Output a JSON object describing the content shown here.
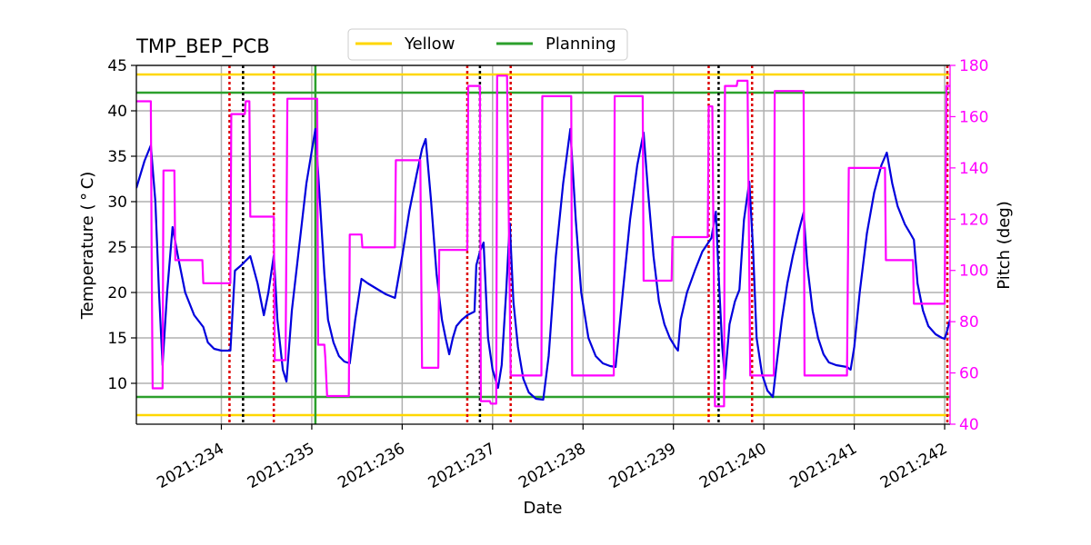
{
  "chart_data": {
    "type": "line",
    "title": "TMP_BEP_PCB",
    "xlabel": "Date",
    "ylabel": "Temperature ($^\\circ$C)",
    "ylabel_right": "Pitch (deg)",
    "xlim": [
      233.06,
      242.06
    ],
    "ylim": [
      5.5,
      45
    ],
    "ylim_right": [
      40,
      180
    ],
    "grid": true,
    "legend_position": "top-center",
    "x_ticks": [
      234,
      235,
      236,
      237,
      238,
      239,
      240,
      241,
      242
    ],
    "x_tick_labels": [
      "2021:234",
      "2021:235",
      "2021:236",
      "2021:237",
      "2021:238",
      "2021:239",
      "2021:240",
      "2021:241",
      "2021:242"
    ],
    "y_ticks": [
      10,
      15,
      20,
      25,
      30,
      35,
      40,
      45
    ],
    "y_tick_labels": [
      "10",
      "15",
      "20",
      "25",
      "30",
      "35",
      "40",
      "45"
    ],
    "y_ticks_right": [
      40,
      60,
      80,
      100,
      120,
      140,
      160,
      180
    ],
    "y_tick_labels_right": [
      "40",
      "60",
      "80",
      "100",
      "120",
      "140",
      "160",
      "180"
    ],
    "limits": [
      {
        "name": "Yellow",
        "values": [
          6.5,
          44
        ],
        "color": "#ffd700"
      },
      {
        "name": "Planning",
        "values": [
          8.5,
          42
        ],
        "color": "#2ca02c"
      }
    ],
    "vlines": {
      "red_dotted": [
        234.09,
        234.58,
        236.72,
        237.2,
        239.39,
        239.87,
        242.03
      ],
      "black_dotted": [
        234.24,
        236.86,
        239.5
      ],
      "green_solid": [
        235.04
      ]
    },
    "series": [
      {
        "axis": "left",
        "color": "#0000dd",
        "points": [
          [
            233.06,
            31.5
          ],
          [
            233.15,
            34.5
          ],
          [
            233.22,
            36.2
          ],
          [
            233.27,
            30
          ],
          [
            233.31,
            20
          ],
          [
            233.35,
            12
          ],
          [
            233.4,
            20
          ],
          [
            233.46,
            27.2
          ],
          [
            233.52,
            24
          ],
          [
            233.6,
            20
          ],
          [
            233.7,
            17.5
          ],
          [
            233.8,
            16.2
          ],
          [
            233.85,
            14.5
          ],
          [
            233.92,
            13.8
          ],
          [
            234.0,
            13.6
          ],
          [
            234.1,
            13.6
          ],
          [
            234.15,
            22.4
          ],
          [
            234.22,
            23
          ],
          [
            234.32,
            24
          ],
          [
            234.4,
            21
          ],
          [
            234.47,
            17.5
          ],
          [
            234.52,
            20
          ],
          [
            234.58,
            24.1
          ],
          [
            234.62,
            17
          ],
          [
            234.68,
            11.5
          ],
          [
            234.72,
            10.2
          ],
          [
            234.78,
            18
          ],
          [
            234.86,
            25
          ],
          [
            234.94,
            32
          ],
          [
            235.04,
            38
          ],
          [
            235.09,
            30
          ],
          [
            235.14,
            22
          ],
          [
            235.18,
            17
          ],
          [
            235.24,
            14.5
          ],
          [
            235.3,
            13
          ],
          [
            235.36,
            12.4
          ],
          [
            235.42,
            12.2
          ],
          [
            235.48,
            17
          ],
          [
            235.55,
            21.5
          ],
          [
            235.62,
            21
          ],
          [
            235.72,
            20.4
          ],
          [
            235.82,
            19.8
          ],
          [
            235.92,
            19.4
          ],
          [
            236.0,
            24
          ],
          [
            236.08,
            29
          ],
          [
            236.16,
            33
          ],
          [
            236.22,
            35.8
          ],
          [
            236.26,
            36.9
          ],
          [
            236.32,
            30
          ],
          [
            236.38,
            22
          ],
          [
            236.44,
            17
          ],
          [
            236.48,
            15
          ],
          [
            236.52,
            13.2
          ],
          [
            236.56,
            15
          ],
          [
            236.6,
            16.3
          ],
          [
            236.66,
            17
          ],
          [
            236.72,
            17.5
          ],
          [
            236.76,
            17.7
          ],
          [
            236.8,
            17.9
          ],
          [
            236.82,
            23
          ],
          [
            236.86,
            24.5
          ],
          [
            236.9,
            25.5
          ],
          [
            236.95,
            15
          ],
          [
            237.0,
            11.5
          ],
          [
            237.06,
            9.5
          ],
          [
            237.1,
            12
          ],
          [
            237.15,
            20
          ],
          [
            237.19,
            27.6
          ],
          [
            237.23,
            19
          ],
          [
            237.28,
            14
          ],
          [
            237.34,
            10.5
          ],
          [
            237.4,
            9
          ],
          [
            237.48,
            8.3
          ],
          [
            237.56,
            8.2
          ],
          [
            237.62,
            13
          ],
          [
            237.7,
            24
          ],
          [
            237.78,
            32
          ],
          [
            237.86,
            38
          ],
          [
            237.92,
            28
          ],
          [
            237.98,
            20
          ],
          [
            238.06,
            15
          ],
          [
            238.14,
            13
          ],
          [
            238.22,
            12.2
          ],
          [
            238.3,
            11.9
          ],
          [
            238.36,
            11.8
          ],
          [
            238.44,
            20
          ],
          [
            238.52,
            28
          ],
          [
            238.6,
            34
          ],
          [
            238.67,
            37.6
          ],
          [
            238.72,
            31
          ],
          [
            238.78,
            24
          ],
          [
            238.84,
            19
          ],
          [
            238.9,
            16.5
          ],
          [
            238.96,
            15
          ],
          [
            239.02,
            14
          ],
          [
            239.05,
            13.6
          ],
          [
            239.08,
            17
          ],
          [
            239.15,
            20
          ],
          [
            239.24,
            22.5
          ],
          [
            239.32,
            24.5
          ],
          [
            239.42,
            26
          ],
          [
            239.47,
            28.9
          ],
          [
            239.5,
            22
          ],
          [
            239.54,
            14
          ],
          [
            239.57,
            10.5
          ],
          [
            239.62,
            16.5
          ],
          [
            239.68,
            19
          ],
          [
            239.73,
            20.3
          ],
          [
            239.78,
            28
          ],
          [
            239.84,
            32.2
          ],
          [
            239.88,
            25
          ],
          [
            239.92,
            15
          ],
          [
            239.98,
            11
          ],
          [
            240.04,
            9.2
          ],
          [
            240.1,
            8.5
          ],
          [
            240.14,
            12
          ],
          [
            240.2,
            17
          ],
          [
            240.26,
            21
          ],
          [
            240.32,
            24
          ],
          [
            240.38,
            26.5
          ],
          [
            240.44,
            28.8
          ],
          [
            240.48,
            23
          ],
          [
            240.54,
            18
          ],
          [
            240.6,
            15
          ],
          [
            240.66,
            13.2
          ],
          [
            240.72,
            12.3
          ],
          [
            240.8,
            12
          ],
          [
            240.92,
            11.8
          ],
          [
            240.96,
            11.5
          ],
          [
            241.0,
            14
          ],
          [
            241.06,
            20
          ],
          [
            241.14,
            26.5
          ],
          [
            241.22,
            31
          ],
          [
            241.3,
            34
          ],
          [
            241.36,
            35.4
          ],
          [
            241.42,
            32
          ],
          [
            241.48,
            29.5
          ],
          [
            241.56,
            27.5
          ],
          [
            241.62,
            26.5
          ],
          [
            241.66,
            25.8
          ],
          [
            241.7,
            21
          ],
          [
            241.76,
            18
          ],
          [
            241.82,
            16.3
          ],
          [
            241.9,
            15.4
          ],
          [
            241.97,
            15
          ],
          [
            242.0,
            14.9
          ],
          [
            242.02,
            15.5
          ],
          [
            242.06,
            17
          ]
        ]
      },
      {
        "axis": "right",
        "color": "#ff00ff",
        "points": [
          [
            233.06,
            166
          ],
          [
            233.2,
            166
          ],
          [
            233.22,
            166
          ],
          [
            233.23,
            100
          ],
          [
            233.24,
            54
          ],
          [
            233.35,
            54
          ],
          [
            233.36,
            139
          ],
          [
            233.48,
            139
          ],
          [
            233.49,
            104
          ],
          [
            233.79,
            104
          ],
          [
            233.8,
            95
          ],
          [
            234.1,
            95
          ],
          [
            234.11,
            161
          ],
          [
            234.26,
            161
          ],
          [
            234.27,
            166
          ],
          [
            234.31,
            166
          ],
          [
            234.32,
            121
          ],
          [
            234.58,
            121
          ],
          [
            234.59,
            65
          ],
          [
            234.71,
            65
          ],
          [
            234.73,
            167
          ],
          [
            235.02,
            167
          ],
          [
            235.06,
            167
          ],
          [
            235.07,
            71
          ],
          [
            235.14,
            71
          ],
          [
            235.15,
            66
          ],
          [
            235.17,
            51
          ],
          [
            235.41,
            51
          ],
          [
            235.42,
            114
          ],
          [
            235.55,
            114
          ],
          [
            235.56,
            109
          ],
          [
            235.92,
            109
          ],
          [
            235.93,
            143
          ],
          [
            236.2,
            143
          ],
          [
            236.22,
            62
          ],
          [
            236.4,
            62
          ],
          [
            236.41,
            108
          ],
          [
            236.72,
            108
          ],
          [
            236.73,
            172
          ],
          [
            236.86,
            172
          ],
          [
            236.87,
            49
          ],
          [
            236.97,
            49
          ],
          [
            236.98,
            48
          ],
          [
            237.04,
            48
          ],
          [
            237.05,
            176
          ],
          [
            237.16,
            176
          ],
          [
            237.2,
            59
          ],
          [
            237.54,
            59
          ],
          [
            237.55,
            168
          ],
          [
            237.87,
            168
          ],
          [
            237.88,
            59
          ],
          [
            238.34,
            59
          ],
          [
            238.35,
            168
          ],
          [
            238.66,
            168
          ],
          [
            238.67,
            96
          ],
          [
            238.98,
            96
          ],
          [
            238.99,
            113
          ],
          [
            239.38,
            113
          ],
          [
            239.39,
            164
          ],
          [
            239.43,
            164
          ],
          [
            239.46,
            47
          ],
          [
            239.56,
            47
          ],
          [
            239.57,
            172
          ],
          [
            239.7,
            172
          ],
          [
            239.71,
            174
          ],
          [
            239.82,
            174
          ],
          [
            239.85,
            59
          ],
          [
            240.11,
            59
          ],
          [
            240.12,
            170
          ],
          [
            240.44,
            170
          ],
          [
            240.45,
            59
          ],
          [
            240.92,
            59
          ],
          [
            240.94,
            140
          ],
          [
            241.34,
            140
          ],
          [
            241.35,
            104
          ],
          [
            241.65,
            104
          ],
          [
            241.66,
            87
          ],
          [
            242.0,
            87
          ],
          [
            242.02,
            172
          ],
          [
            242.06,
            172
          ]
        ]
      }
    ]
  },
  "colors": {
    "temperature": "#0000dd",
    "pitch": "#ff00ff",
    "yellow": "#ffd700",
    "planning": "#2ca02c",
    "grid": "#b0b0b0",
    "red_dotted": "#dd0000",
    "black_dotted": "#000000"
  }
}
